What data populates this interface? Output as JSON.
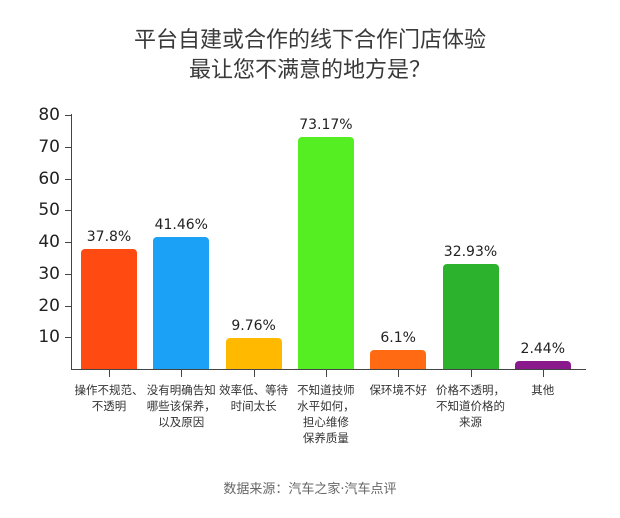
{
  "chart_data": {
    "type": "bar",
    "title": "平台自建或合作的线下合作门店体验\n最让您不满意的地方是？",
    "title_lines": [
      "平台自建或合作的线下合作门店体验",
      "最让您不满意的地方是？"
    ],
    "categories": [
      "操作不规范、\n不透明",
      "没有明确告知\n哪些该保养，\n以及原因",
      "效率低、等待\n时间太长",
      "不知道技师\n水平如何，\n担心维修\n保养质量",
      "保环境不好",
      "价格不透明，\n不知道价格的\n来源",
      "其他"
    ],
    "values": [
      37.8,
      41.46,
      9.76,
      73.17,
      6.1,
      32.93,
      2.44
    ],
    "value_labels": [
      "37.8%",
      "41.46%",
      "9.76%",
      "73.17%",
      "6.1%",
      "32.93%",
      "2.44%"
    ],
    "colors": [
      "#ff4a12",
      "#1ba1f5",
      "#ffba00",
      "#55ee22",
      "#ff6a12",
      "#2db22d",
      "#8a1a8c"
    ],
    "xlabel": "",
    "ylabel": "",
    "ylim": [
      0,
      80
    ],
    "yticks": [
      10,
      20,
      30,
      40,
      50,
      60,
      70,
      80
    ],
    "grid": false,
    "legend": "none",
    "source": "数据来源：汽车之家·汽车点评"
  }
}
